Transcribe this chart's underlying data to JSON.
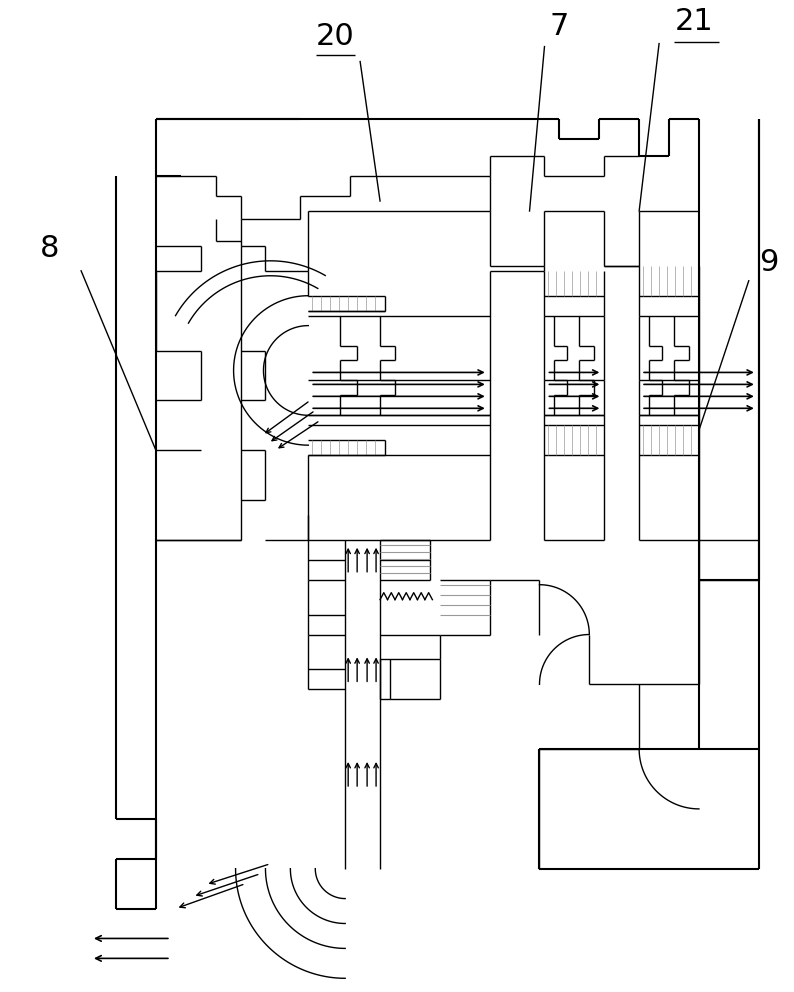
{
  "bg_color": "#ffffff",
  "line_color": "#000000",
  "gray_color": "#999999",
  "fig_width": 7.94,
  "fig_height": 9.92,
  "dpi": 100
}
